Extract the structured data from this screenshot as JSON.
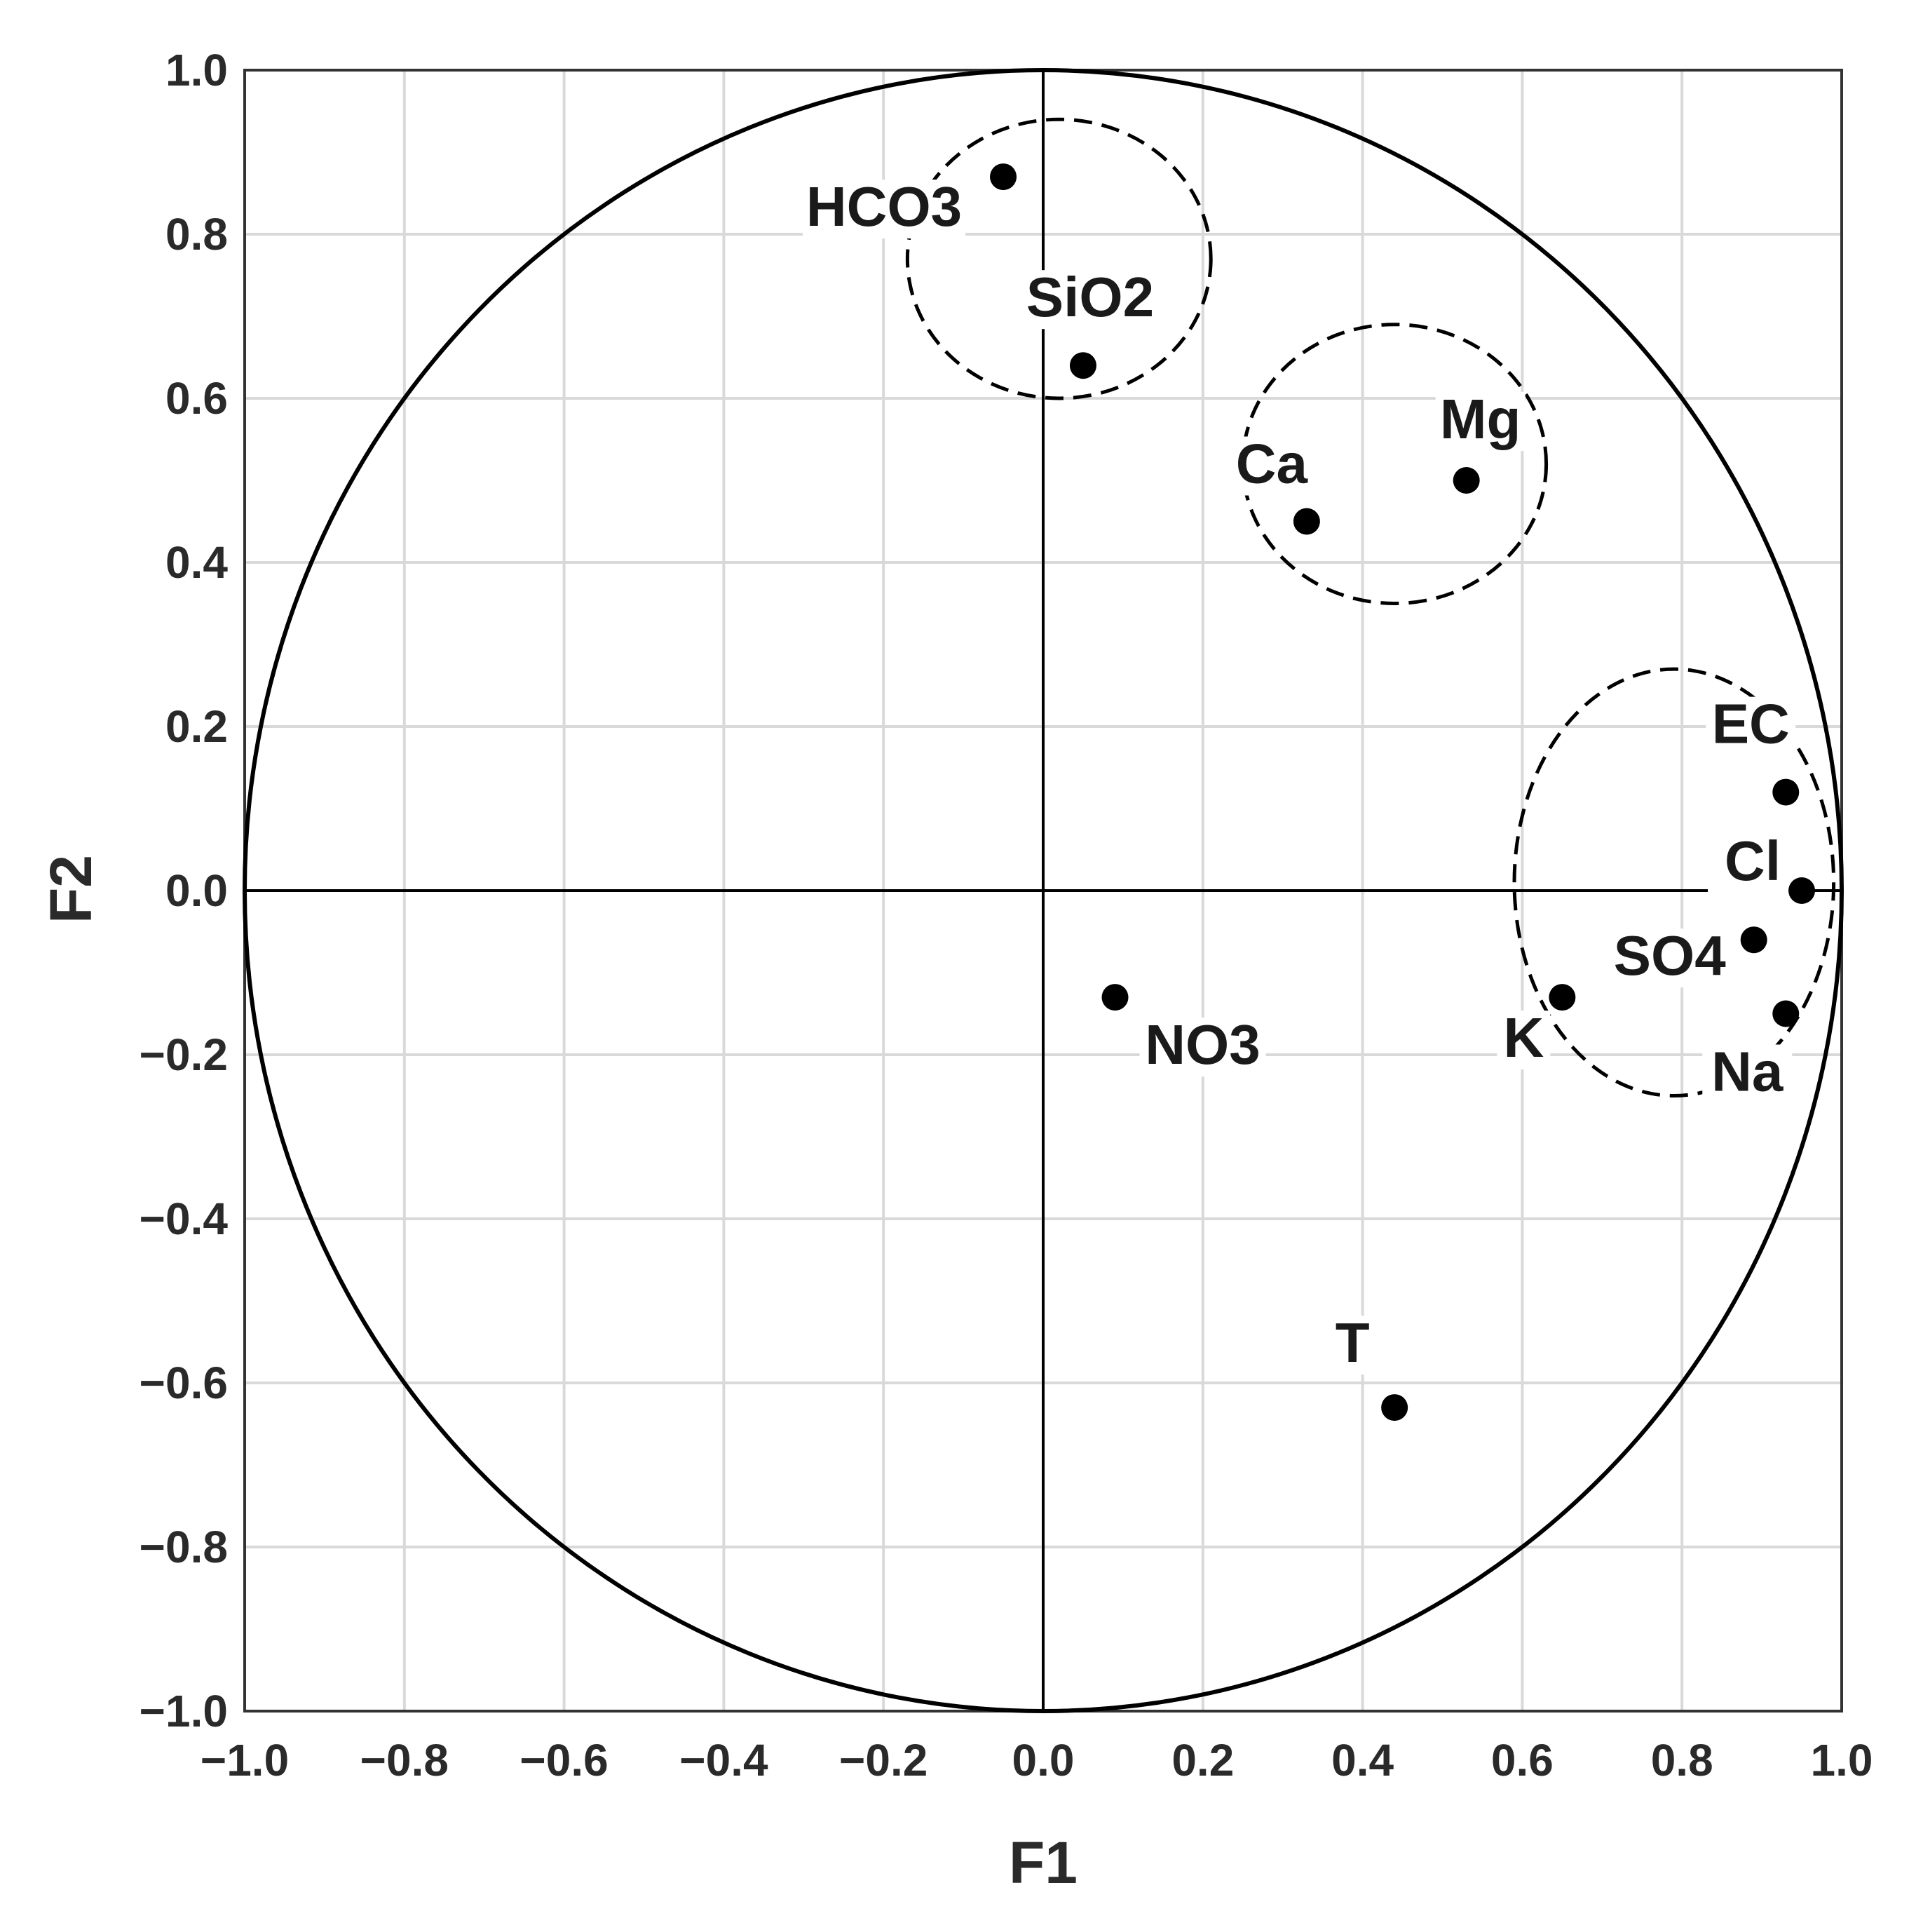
{
  "chart_data": {
    "type": "scatter",
    "title": "",
    "xlabel": "F1",
    "ylabel": "F2",
    "xlim": [
      -1.0,
      1.0
    ],
    "ylim": [
      -1.0,
      1.0
    ],
    "grid": true,
    "xticks": [
      "−1.0",
      "−0.8",
      "−0.6",
      "−0.4",
      "−0.2",
      "0.0",
      "0.2",
      "0.4",
      "0.6",
      "0.8",
      "1.0"
    ],
    "yticks": [
      "1.0",
      "0.8",
      "0.6",
      "0.4",
      "0.2",
      "0.0",
      "−0.2",
      "−0.4",
      "−0.6",
      "−0.8",
      "−1.0"
    ],
    "points": [
      {
        "label": "HCO3",
        "x": -0.05,
        "y": 0.87
      },
      {
        "label": "SiO2",
        "x": 0.05,
        "y": 0.64
      },
      {
        "label": "Mg",
        "x": 0.53,
        "y": 0.5
      },
      {
        "label": "Ca",
        "x": 0.33,
        "y": 0.45
      },
      {
        "label": "EC",
        "x": 0.93,
        "y": 0.12
      },
      {
        "label": "Cl",
        "x": 0.95,
        "y": 0.0
      },
      {
        "label": "SO4",
        "x": 0.89,
        "y": -0.06
      },
      {
        "label": "K",
        "x": 0.65,
        "y": -0.13
      },
      {
        "label": "Na",
        "x": 0.93,
        "y": -0.15
      },
      {
        "label": "NO3",
        "x": 0.09,
        "y": -0.13
      },
      {
        "label": "T",
        "x": 0.44,
        "y": -0.63
      }
    ],
    "unit_circle": true,
    "groups": [
      {
        "cx": 0.02,
        "cy": 0.77,
        "rx": 0.19,
        "ry": 0.17
      },
      {
        "cx": 0.44,
        "cy": 0.52,
        "rx": 0.19,
        "ry": 0.17
      },
      {
        "cx": 0.79,
        "cy": 0.01,
        "rx": 0.2,
        "ry": 0.26
      }
    ]
  }
}
